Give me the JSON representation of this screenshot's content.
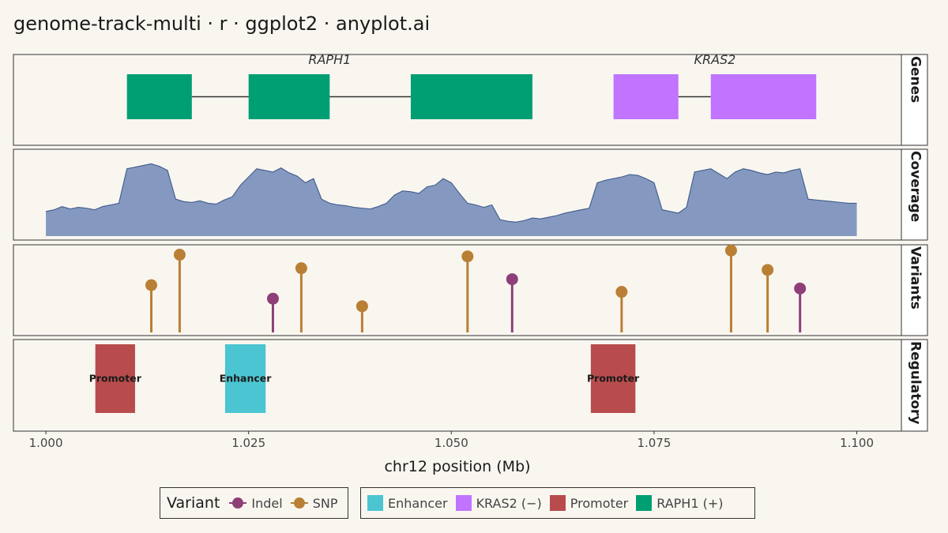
{
  "title": "genome-track-multi · r · ggplot2 · anyplot.ai",
  "chart_data": {
    "type": "genome-track",
    "xlabel": "chr12 position (Mb)",
    "xlim": [
      0.996,
      1.1055
    ],
    "x_ticks": [
      1.0,
      1.025,
      1.05,
      1.075,
      1.1
    ],
    "x_tick_labels": [
      "1.000",
      "1.025",
      "1.050",
      "1.075",
      "1.100"
    ],
    "panels": [
      "Genes",
      "Coverage",
      "Variants",
      "Regulatory"
    ],
    "colors": {
      "RAPH1": "#009E73",
      "KRAS2": "#C074FF",
      "Enhancer": "#4BC5D1",
      "Promoter": "#B84C4C",
      "SNP": "#B97F35",
      "Indel": "#8E3F77",
      "coverage_fill": "#8599C0",
      "coverage_line": "#3F5A8C"
    },
    "genes": [
      {
        "name": "RAPH1",
        "label": "RAPH1",
        "strand": "+",
        "start": 1.01,
        "end": 1.0605,
        "exons": [
          [
            1.01,
            1.018
          ],
          [
            1.025,
            1.035
          ],
          [
            1.045,
            1.06
          ]
        ]
      },
      {
        "name": "KRAS2",
        "label": "KRAS2",
        "strand": "−",
        "start": 1.07,
        "end": 1.0955,
        "exons": [
          [
            1.07,
            1.078
          ],
          [
            1.082,
            1.095
          ]
        ]
      }
    ],
    "coverage": {
      "x": [
        1.0,
        1.001,
        1.002,
        1.003,
        1.004,
        1.005,
        1.006,
        1.007,
        1.008,
        1.009,
        1.01,
        1.011,
        1.012,
        1.013,
        1.014,
        1.015,
        1.016,
        1.017,
        1.018,
        1.019,
        1.02,
        1.021,
        1.022,
        1.023,
        1.024,
        1.025,
        1.026,
        1.027,
        1.028,
        1.029,
        1.03,
        1.031,
        1.032,
        1.033,
        1.034,
        1.035,
        1.036,
        1.037,
        1.038,
        1.039,
        1.04,
        1.041,
        1.042,
        1.043,
        1.044,
        1.045,
        1.046,
        1.047,
        1.048,
        1.049,
        1.05,
        1.051,
        1.052,
        1.053,
        1.054,
        1.055,
        1.056,
        1.057,
        1.058,
        1.059,
        1.06,
        1.061,
        1.062,
        1.063,
        1.064,
        1.065,
        1.066,
        1.067,
        1.068,
        1.069,
        1.07,
        1.071,
        1.072,
        1.073,
        1.074,
        1.075,
        1.076,
        1.077,
        1.078,
        1.079,
        1.08,
        1.081,
        1.082,
        1.083,
        1.084,
        1.085,
        1.086,
        1.087,
        1.088,
        1.089,
        1.09,
        1.091,
        1.092,
        1.093,
        1.094,
        1.095,
        1.096,
        1.097,
        1.098,
        1.099,
        1.1
      ],
      "values": [
        30,
        32,
        36,
        33,
        35,
        34,
        32,
        36,
        38,
        40,
        82,
        84,
        86,
        88,
        85,
        80,
        45,
        42,
        41,
        43,
        40,
        39,
        44,
        48,
        62,
        72,
        82,
        80,
        78,
        83,
        77,
        73,
        65,
        70,
        45,
        40,
        38,
        37,
        35,
        34,
        33,
        36,
        40,
        50,
        55,
        54,
        52,
        60,
        62,
        70,
        65,
        52,
        40,
        38,
        35,
        38,
        20,
        18,
        17,
        19,
        22,
        21,
        23,
        25,
        28,
        30,
        32,
        34,
        65,
        68,
        70,
        72,
        75,
        74,
        70,
        65,
        32,
        30,
        28,
        35,
        78,
        80,
        82,
        76,
        70,
        78,
        82,
        80,
        77,
        75,
        78,
        77,
        80,
        82,
        45,
        44,
        43,
        42,
        41,
        40,
        40
      ],
      "ylim": [
        0,
        100
      ]
    },
    "variants": [
      {
        "pos": 1.013,
        "height": 0.56,
        "type": "SNP"
      },
      {
        "pos": 1.0165,
        "height": 0.92,
        "type": "SNP"
      },
      {
        "pos": 1.028,
        "height": 0.4,
        "type": "Indel"
      },
      {
        "pos": 1.0315,
        "height": 0.76,
        "type": "SNP"
      },
      {
        "pos": 1.039,
        "height": 0.31,
        "type": "SNP"
      },
      {
        "pos": 1.052,
        "height": 0.9,
        "type": "SNP"
      },
      {
        "pos": 1.0575,
        "height": 0.63,
        "type": "Indel"
      },
      {
        "pos": 1.071,
        "height": 0.48,
        "type": "SNP"
      },
      {
        "pos": 1.0845,
        "height": 0.97,
        "type": "SNP"
      },
      {
        "pos": 1.089,
        "height": 0.74,
        "type": "SNP"
      },
      {
        "pos": 1.093,
        "height": 0.52,
        "type": "Indel"
      }
    ],
    "regulatory": [
      {
        "type": "Promoter",
        "label": "Promoter",
        "start": 1.0061,
        "end": 1.011
      },
      {
        "type": "Enhancer",
        "label": "Enhancer",
        "start": 1.0221,
        "end": 1.0271
      },
      {
        "type": "Promoter",
        "label": "Promoter",
        "start": 1.0672,
        "end": 1.0727
      }
    ]
  },
  "legend": {
    "variant_title": "Variant",
    "variant_items": [
      {
        "label": "Indel",
        "color": "#8E3F77"
      },
      {
        "label": "SNP",
        "color": "#B97F35"
      }
    ],
    "feature_items": [
      {
        "label": "Enhancer",
        "color": "#4BC5D1"
      },
      {
        "label": "KRAS2 (−)",
        "color": "#C074FF"
      },
      {
        "label": "Promoter",
        "color": "#B84C4C"
      },
      {
        "label": "RAPH1 (+)",
        "color": "#009E73"
      }
    ]
  }
}
